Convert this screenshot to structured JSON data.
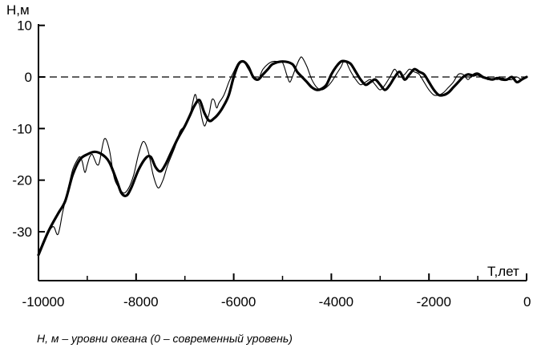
{
  "chart_data": {
    "type": "line",
    "ylabel": "H,м",
    "xlabel": "T,лет",
    "xlim": [
      -10000,
      0
    ],
    "ylim": [
      -40,
      10
    ],
    "x_ticks": [
      -10000,
      -8000,
      -6000,
      -4000,
      -2000,
      0
    ],
    "x_tick_labels": [
      "-10000",
      "-8000",
      "-6000",
      "-4000",
      "-2000",
      "0"
    ],
    "y_ticks": [
      10,
      0,
      -10,
      -20,
      -30
    ],
    "y_tick_labels": [
      "10",
      "0",
      "-10",
      "-20",
      "-30"
    ],
    "reference_line": {
      "y": 0,
      "style": "dashed"
    },
    "grid": false,
    "legend": "none",
    "caption": "Н, м – уровни океана (0 – современный уровень)",
    "series": [
      {
        "style": "thick-smoothed",
        "x": [
          -10000,
          -9800,
          -9600,
          -9450,
          -9300,
          -9150,
          -9000,
          -8850,
          -8700,
          -8550,
          -8400,
          -8300,
          -8200,
          -8100,
          -7950,
          -7800,
          -7700,
          -7600,
          -7500,
          -7400,
          -7300,
          -7150,
          -7000,
          -6900,
          -6800,
          -6700,
          -6600,
          -6500,
          -6400,
          -6300,
          -6200,
          -6100,
          -6000,
          -5900,
          -5800,
          -5700,
          -5600,
          -5500,
          -5400,
          -5300,
          -5200,
          -5000,
          -4800,
          -4700,
          -4600,
          -4500,
          -4400,
          -4300,
          -4200,
          -4100,
          -4000,
          -3900,
          -3800,
          -3700,
          -3600,
          -3500,
          -3400,
          -3300,
          -3200,
          -3100,
          -3000,
          -2900,
          -2800,
          -2700,
          -2600,
          -2500,
          -2400,
          -2300,
          -2200,
          -2100,
          -2000,
          -1900,
          -1800,
          -1700,
          -1600,
          -1500,
          -1400,
          -1300,
          -1200,
          -1100,
          -1000,
          -900,
          -800,
          -700,
          -600,
          -500,
          -400,
          -300,
          -200,
          -100,
          0
        ],
        "y": [
          -34.5,
          -30,
          -26.5,
          -24,
          -19,
          -16,
          -15,
          -14.5,
          -15,
          -16.5,
          -20,
          -22.5,
          -23,
          -21.5,
          -18,
          -15.7,
          -15.5,
          -17.5,
          -18.3,
          -17,
          -15,
          -12,
          -9.5,
          -7.5,
          -5.5,
          -4.5,
          -7,
          -8.5,
          -8,
          -7,
          -5.5,
          -3.5,
          0,
          2.5,
          3,
          2,
          0,
          -0.5,
          0.5,
          1.5,
          2.5,
          3,
          2.5,
          1,
          0,
          -1,
          -2,
          -2.5,
          -2.3,
          -1.5,
          0.5,
          2,
          3,
          3,
          2.5,
          1,
          -0.5,
          -1.5,
          -1,
          -0.5,
          -1.5,
          -2.5,
          -1.5,
          0,
          1,
          -0.5,
          0.5,
          1.5,
          1,
          0.5,
          -1,
          -2.5,
          -3.5,
          -3.5,
          -3,
          -2,
          -1,
          0,
          0.5,
          0.3,
          0.5,
          0,
          -0.3,
          -0.5,
          -0.2,
          -0.5,
          -0.5,
          0,
          -1,
          -0.5,
          0
        ]
      },
      {
        "style": "thin-observed",
        "x": [
          -10000,
          -9850,
          -9700,
          -9600,
          -9500,
          -9400,
          -9300,
          -9200,
          -9150,
          -9100,
          -9050,
          -9000,
          -8950,
          -8900,
          -8850,
          -8800,
          -8750,
          -8650,
          -8550,
          -8450,
          -8350,
          -8250,
          -8150,
          -8050,
          -7950,
          -7850,
          -7750,
          -7650,
          -7550,
          -7450,
          -7350,
          -7200,
          -7100,
          -7000,
          -6900,
          -6800,
          -6750,
          -6700,
          -6650,
          -6600,
          -6550,
          -6500,
          -6450,
          -6400,
          -6350,
          -6300,
          -6200,
          -6100,
          -6000,
          -5900,
          -5800,
          -5700,
          -5600,
          -5500,
          -5450,
          -5400,
          -5300,
          -5200,
          -5100,
          -5000,
          -4900,
          -4850,
          -4800,
          -4700,
          -4650,
          -4600,
          -4500,
          -4400,
          -4300,
          -4200,
          -4100,
          -4000,
          -3900,
          -3800,
          -3750,
          -3700,
          -3650,
          -3600,
          -3500,
          -3400,
          -3300,
          -3200,
          -3100,
          -3000,
          -2900,
          -2800,
          -2700,
          -2600,
          -2500,
          -2400,
          -2300,
          -2200,
          -2100,
          -2000,
          -1900,
          -1800,
          -1700,
          -1600,
          -1500,
          -1400,
          -1300,
          -1200,
          -1100,
          -1000,
          -900,
          -800,
          -700,
          -600,
          -500,
          -400,
          -300,
          -200,
          -100,
          0
        ],
        "y": [
          -34,
          -31,
          -29,
          -30.5,
          -26,
          -22,
          -18,
          -16,
          -15.5,
          -16.5,
          -18.5,
          -17,
          -15.5,
          -15,
          -16,
          -17,
          -16.5,
          -12,
          -14,
          -19.5,
          -21.5,
          -22.5,
          -21.5,
          -19,
          -15,
          -12.5,
          -14.5,
          -19,
          -21.5,
          -20,
          -17,
          -13.5,
          -10.5,
          -9.5,
          -7.5,
          -3.5,
          -4.5,
          -5.5,
          -8,
          -9.5,
          -8.5,
          -7,
          -4.5,
          -4.5,
          -6,
          -5,
          -3.5,
          -1,
          1,
          2.8,
          3,
          1.5,
          0,
          -0.5,
          0.5,
          1.5,
          2.5,
          3,
          3,
          2.8,
          0,
          -1,
          0,
          2.5,
          3.5,
          3.8,
          2,
          -0.5,
          -2,
          -2.5,
          -2,
          -1,
          0.5,
          2,
          3,
          3,
          2,
          1,
          -0.5,
          -1.5,
          -1,
          -0.5,
          -1.5,
          -2.5,
          -1.5,
          0,
          1.5,
          0,
          0.5,
          1.5,
          1,
          0.5,
          -1,
          -2.5,
          -3.5,
          -3.5,
          -3,
          -2,
          -1,
          0.5,
          0.5,
          -0.5,
          0.5,
          0.8,
          0.2,
          -0.5,
          -0.3,
          -0.5,
          -0.2,
          -0.5,
          -0.5,
          0,
          -0.5,
          0
        ]
      }
    ]
  }
}
